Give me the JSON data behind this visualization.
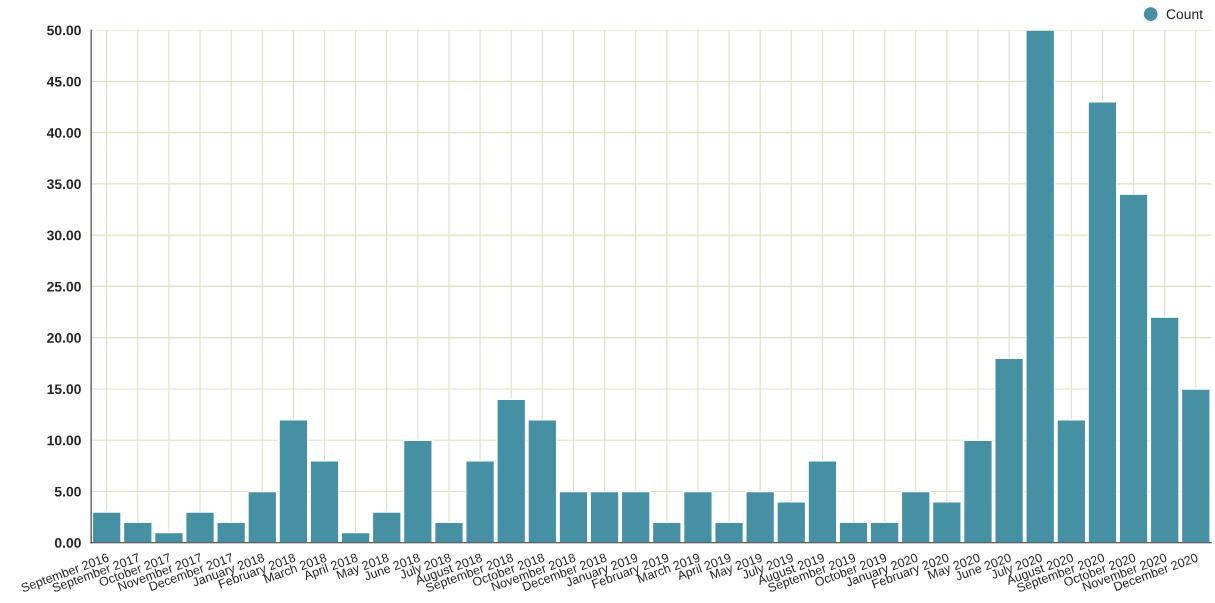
{
  "chart_data": {
    "type": "bar",
    "categories": [
      "September 2016",
      "September 2017",
      "October 2017",
      "November 2017",
      "December 2017",
      "January 2018",
      "February 2018",
      "March 2018",
      "April 2018",
      "May 2018",
      "June 2018",
      "July 2018",
      "August 2018",
      "September 2018",
      "October 2018",
      "November 2018",
      "December 2018",
      "January 2019",
      "February 2019",
      "March 2019",
      "April 2019",
      "May 2019",
      "July 2019",
      "August 2019",
      "September 2019",
      "October 2019",
      "January 2020",
      "February 2020",
      "May 2020",
      "June 2020",
      "July 2020",
      "August 2020",
      "September 2020",
      "October 2020",
      "November 2020",
      "December 2020"
    ],
    "series": [
      {
        "name": "Count",
        "color": "#4690a4",
        "values": [
          3,
          2,
          1,
          3,
          2,
          5,
          12,
          8,
          1,
          3,
          10,
          2,
          8,
          14,
          12,
          5,
          5,
          5,
          2,
          5,
          2,
          5,
          4,
          8,
          2,
          2,
          5,
          4,
          10,
          18,
          50,
          12,
          43,
          34,
          22,
          15
        ]
      }
    ],
    "ylim": [
      0,
      50
    ],
    "yticks": [
      {
        "value": 0,
        "label": "0.00"
      },
      {
        "value": 5,
        "label": "5.00"
      },
      {
        "value": 10,
        "label": "10.00"
      },
      {
        "value": 15,
        "label": "15.00"
      },
      {
        "value": 20,
        "label": "20.00"
      },
      {
        "value": 25,
        "label": "25.00"
      },
      {
        "value": 30,
        "label": "30.00"
      },
      {
        "value": 35,
        "label": "35.00"
      },
      {
        "value": 40,
        "label": "40.00"
      },
      {
        "value": 45,
        "label": "45.00"
      },
      {
        "value": 50,
        "label": "50.00"
      }
    ],
    "grid": true,
    "legend": "top right"
  }
}
